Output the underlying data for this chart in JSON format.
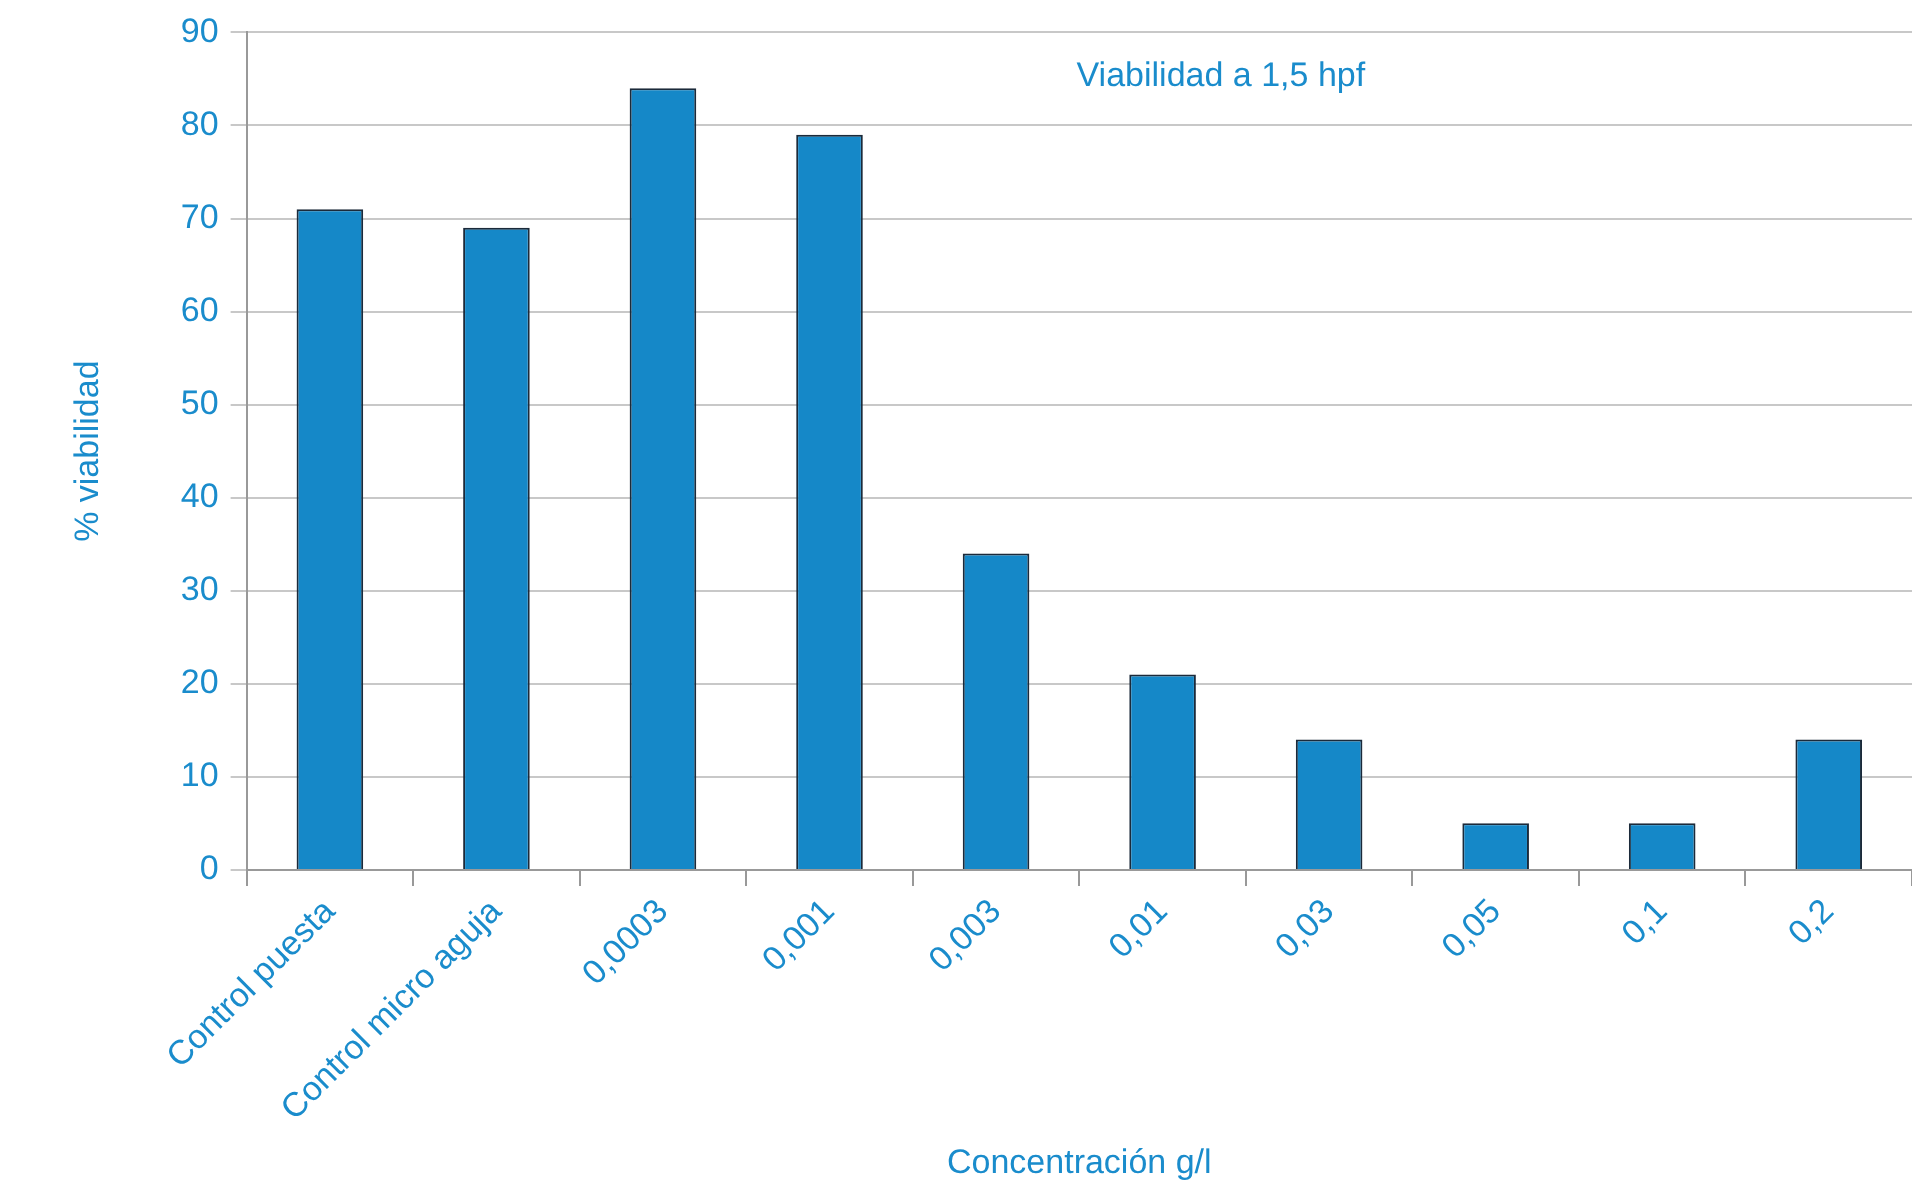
{
  "chart_data": {
    "type": "bar",
    "title": "Viabilidad a 1,5 hpf",
    "xlabel": "Concentración g/l",
    "ylabel": "% viabilidad",
    "categories": [
      "Control puesta",
      "Control micro aguja",
      "0,0003",
      "0,001",
      "0,003",
      "0,01",
      "0,03",
      "0,05",
      "0,1",
      "0,2"
    ],
    "values": [
      71,
      69,
      84,
      79,
      34,
      21,
      14,
      5,
      5,
      14
    ],
    "color": "#1588c8",
    "ylim": [
      0,
      90
    ],
    "yticks": [
      0,
      10,
      20,
      30,
      40,
      50,
      60,
      70,
      80,
      90
    ],
    "grid": "y",
    "legend": false
  }
}
